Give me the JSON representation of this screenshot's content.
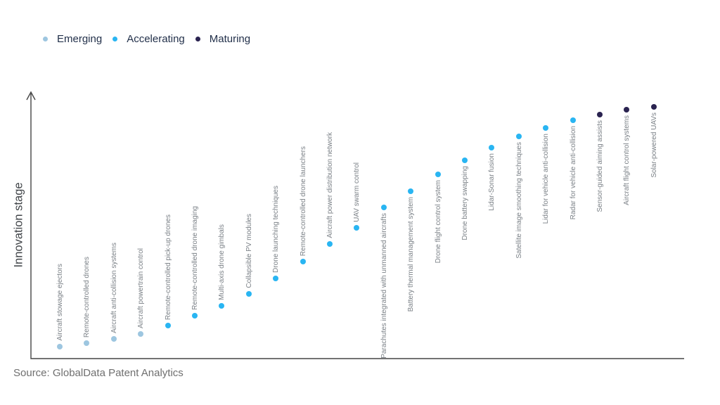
{
  "source_note": "Source: GlobalData Patent Analytics",
  "chart_data": {
    "type": "scatter",
    "title": "",
    "xlabel": "",
    "ylabel": "Innovation stage",
    "grid": false,
    "legend_position": "top-left",
    "y_axis": {
      "has_numeric_scale": false,
      "arrow_at_top": true
    },
    "legend": [
      {
        "label": "Emerging",
        "color": "#9dc6e0"
      },
      {
        "label": "Accelerating",
        "color": "#29b5f2"
      },
      {
        "label": "Maturing",
        "color": "#2a2350"
      }
    ],
    "points": [
      {
        "label": "Aircraft stowage ejectors",
        "stage": "Emerging",
        "stage_score_pct": 4.7
      },
      {
        "label": "Remote-controlled drones",
        "stage": "Emerging",
        "stage_score_pct": 6.0
      },
      {
        "label": "Aircraft anti-collision systems",
        "stage": "Emerging",
        "stage_score_pct": 7.7
      },
      {
        "label": "Aircraft powertrain control",
        "stage": "Emerging",
        "stage_score_pct": 9.6
      },
      {
        "label": "Remote-controlled pick-up drones",
        "stage": "Accelerating",
        "stage_score_pct": 12.9
      },
      {
        "label": "Remote-controlled drone imaging",
        "stage": "Accelerating",
        "stage_score_pct": 16.7
      },
      {
        "label": "Multi-axis drone gimbals",
        "stage": "Accelerating",
        "stage_score_pct": 20.5
      },
      {
        "label": "Collapsible PV modules",
        "stage": "Accelerating",
        "stage_score_pct": 25.2
      },
      {
        "label": "Drone launching techniques",
        "stage": "Accelerating",
        "stage_score_pct": 31.2
      },
      {
        "label": "Remote-controlled drone launchers",
        "stage": "Accelerating",
        "stage_score_pct": 37.8
      },
      {
        "label": "Aircraft power distribution network",
        "stage": "Accelerating",
        "stage_score_pct": 44.7
      },
      {
        "label": "UAV swarm control",
        "stage": "Accelerating",
        "stage_score_pct": 51.0
      },
      {
        "label": "Parachutes integrated with unmanned aircrafts",
        "stage": "Accelerating",
        "stage_score_pct": 58.9
      },
      {
        "label": "Battery thermal management system",
        "stage": "Accelerating",
        "stage_score_pct": 65.2
      },
      {
        "label": "Drone flight control system",
        "stage": "Accelerating",
        "stage_score_pct": 71.8
      },
      {
        "label": "Drone battery swapping",
        "stage": "Accelerating",
        "stage_score_pct": 77.3
      },
      {
        "label": "Lidar-Sonar fusion",
        "stage": "Accelerating",
        "stage_score_pct": 82.2
      },
      {
        "label": "Satellite image smoothing techniques",
        "stage": "Accelerating",
        "stage_score_pct": 86.6
      },
      {
        "label": "Lidar for vehicle anti-collision",
        "stage": "Accelerating",
        "stage_score_pct": 89.9
      },
      {
        "label": "Radar for vehicle anti-collision",
        "stage": "Accelerating",
        "stage_score_pct": 92.9
      },
      {
        "label": "Sensor-guided aiming assists",
        "stage": "Maturing",
        "stage_score_pct": 95.1
      },
      {
        "label": "Aircraft flight control systems",
        "stage": "Maturing",
        "stage_score_pct": 97.0
      },
      {
        "label": "Solar-powered UAVs",
        "stage": "Maturing",
        "stage_score_pct": 98.1
      }
    ]
  }
}
